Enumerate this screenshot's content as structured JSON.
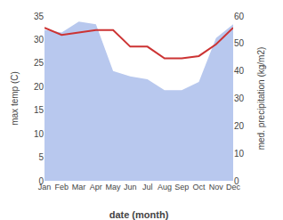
{
  "chart_data": {
    "type": "line",
    "xlabel": "date (month)",
    "ylabel": "max temp (C)",
    "y2label": "med. precipitation (kg/m2)",
    "categories": [
      "Jan",
      "Feb",
      "Mar",
      "Apr",
      "May",
      "Jun",
      "Jul",
      "Aug",
      "Sep",
      "Oct",
      "Nov",
      "Dec"
    ],
    "series": [
      {
        "type": "area",
        "axis": "y2",
        "color": "#b8c8ee",
        "values": [
          55,
          54,
          58,
          57,
          40,
          38,
          37,
          33,
          33,
          36,
          52,
          57
        ]
      },
      {
        "type": "line",
        "color": "#cc3333",
        "values": [
          32.5,
          31.0,
          31.5,
          32.0,
          32.0,
          28.5,
          28.5,
          26.0,
          26.0,
          26.5,
          29.0,
          32.5
        ]
      }
    ],
    "ylim": [
      0,
      35
    ],
    "yticks": [
      0,
      5,
      10,
      15,
      20,
      25,
      30,
      35
    ],
    "y2lim": [
      0,
      60
    ],
    "y2ticks": [
      0,
      10,
      20,
      30,
      40,
      50,
      60
    ],
    "grid": false
  }
}
